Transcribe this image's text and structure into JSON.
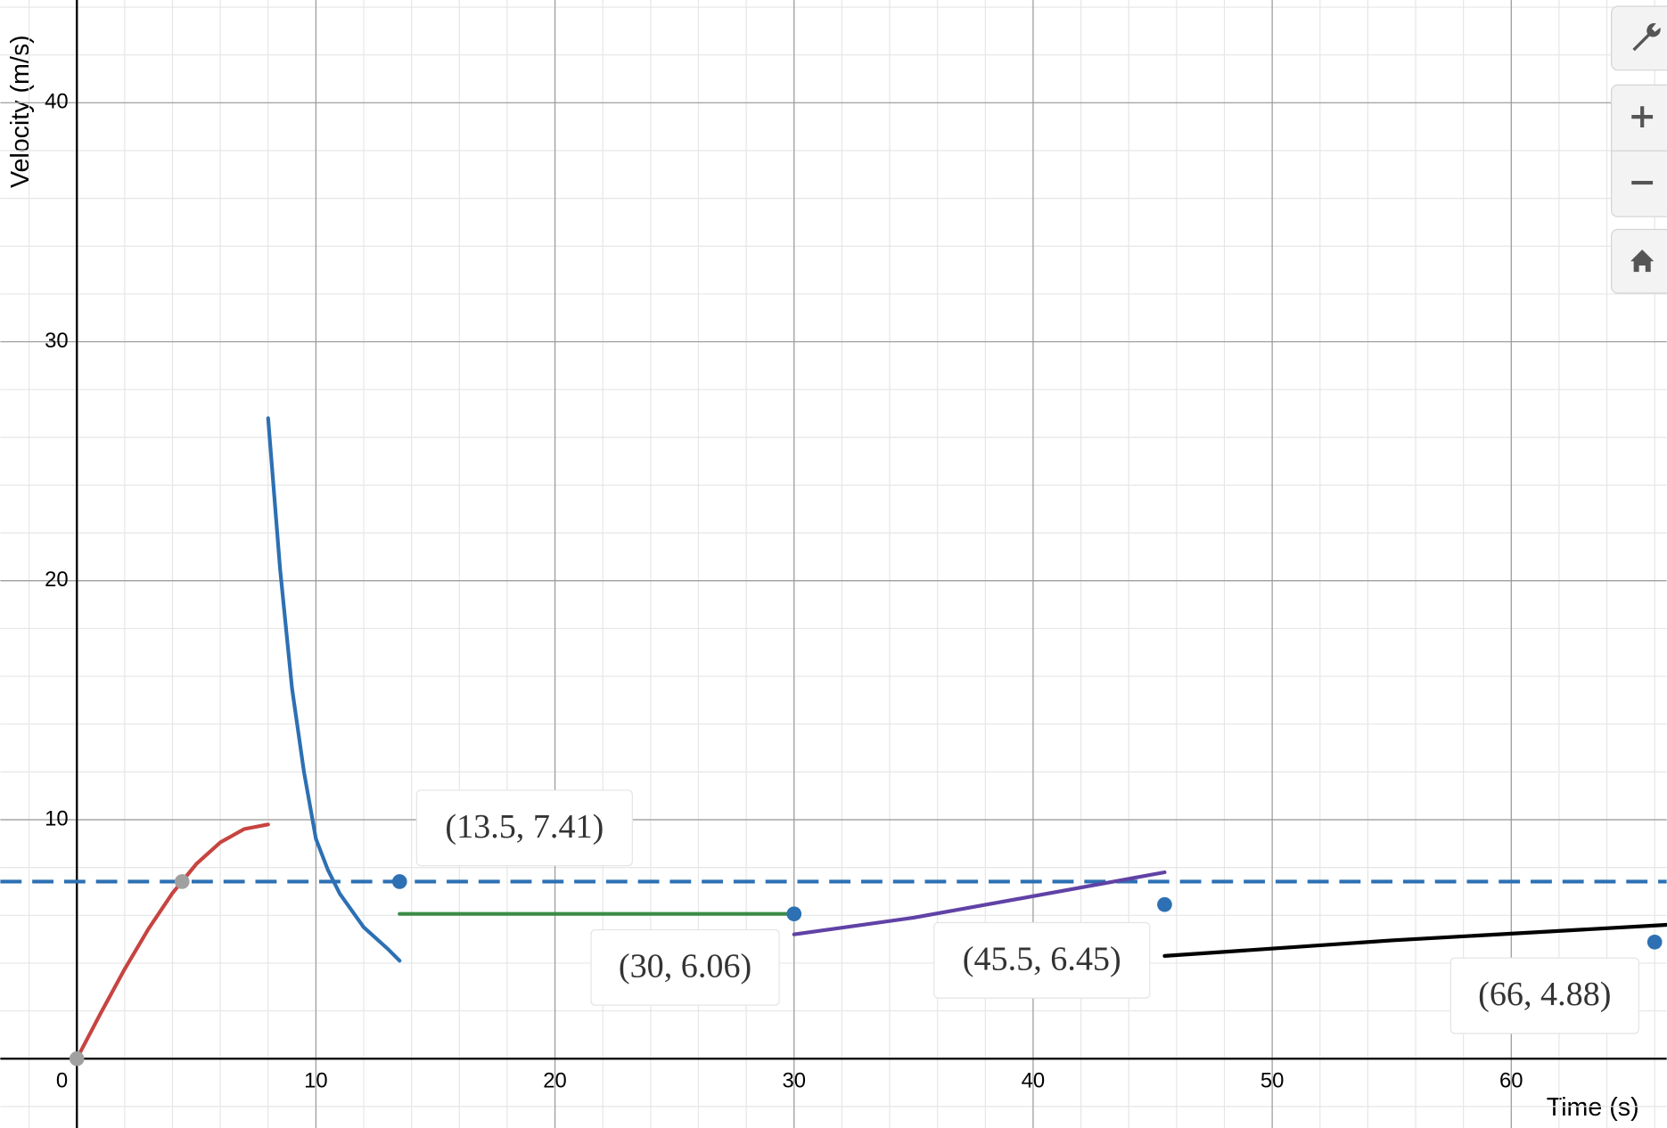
{
  "chart_data": {
    "type": "line",
    "xlabel": "Time (s)",
    "ylabel": "Velocity (m/s)",
    "xlim": [
      -3.2,
      66.5
    ],
    "ylim": [
      -2.9,
      44.3
    ],
    "xticks": [
      0,
      10,
      20,
      30,
      40,
      50,
      60
    ],
    "yticks": [
      10,
      20,
      30,
      40
    ],
    "minor_grid_step": 2,
    "grid": true,
    "series": [
      {
        "color": "#c74440",
        "x": [
          0,
          1,
          2,
          3,
          4,
          5,
          6,
          7,
          8
        ],
        "values": [
          0,
          1.91,
          3.75,
          5.44,
          6.93,
          8.15,
          9.05,
          9.61,
          9.8
        ]
      },
      {
        "color": "#2d70b3",
        "x": [
          8,
          8.5,
          9,
          9.5,
          10,
          10.5,
          11,
          12,
          13,
          13.5
        ],
        "values": [
          26.8,
          20.5,
          15.5,
          12,
          9.2,
          7.9,
          6.9,
          5.5,
          4.6,
          4.1
        ]
      },
      {
        "color": "#388c46",
        "x": [
          13.5,
          30
        ],
        "values": [
          6.06,
          6.06
        ]
      },
      {
        "color": "#6042a6",
        "x": [
          30,
          35,
          40,
          45.5
        ],
        "values": [
          5.2,
          5.9,
          6.8,
          7.8
        ]
      },
      {
        "color": "#000000",
        "x": [
          45.5,
          55,
          66.5
        ],
        "values": [
          4.3,
          4.95,
          5.6
        ]
      }
    ],
    "hlines": [
      {
        "value": 7.41,
        "color": "#2d70b3",
        "dashed": true
      }
    ],
    "gray_points": {
      "color": "#a0a0a0",
      "x": [
        0,
        4.4
      ],
      "values": [
        0,
        7.41
      ]
    },
    "points": {
      "color": "#2d70b3",
      "x": [
        13.5,
        30,
        45.5,
        66
      ],
      "values": [
        7.41,
        6.06,
        6.45,
        4.88
      ],
      "value_labels": [
        "(13.5, 7.41)",
        "(30, 6.06)",
        "(45.5, 6.45)",
        "(66, 4.88)"
      ]
    }
  }
}
